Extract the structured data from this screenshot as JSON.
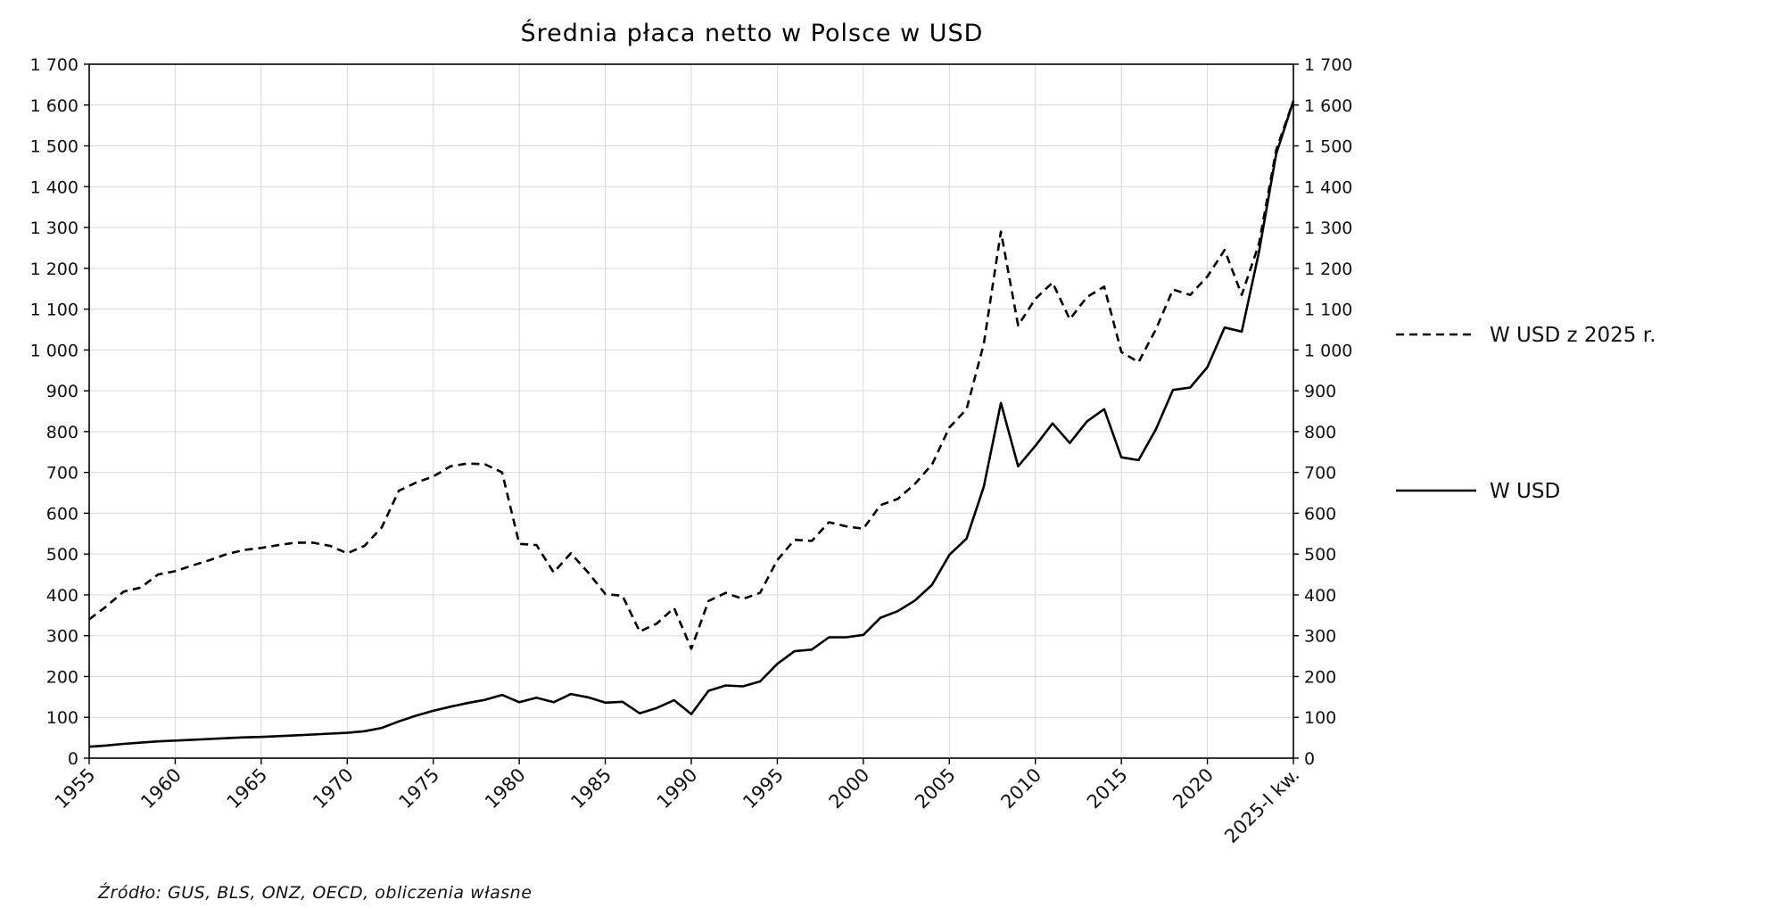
{
  "chart_data": {
    "type": "line",
    "title": "Średnia płaca netto w Polsce w USD",
    "xlabel": "",
    "ylabel": "",
    "x_range": [
      1955,
      2025
    ],
    "ylim": [
      0,
      1700
    ],
    "yticks": [
      0,
      100,
      200,
      300,
      400,
      500,
      600,
      700,
      800,
      900,
      1000,
      1100,
      1200,
      1300,
      1400,
      1500,
      1600,
      1700
    ],
    "ytick_labels": [
      "0",
      "100",
      "200",
      "300",
      "400",
      "500",
      "600",
      "700",
      "800",
      "900",
      "1 000",
      "1 100",
      "1 200",
      "1 300",
      "1 400",
      "1 500",
      "1 600",
      "1 700"
    ],
    "xticks": [
      1955,
      1960,
      1965,
      1970,
      1975,
      1980,
      1985,
      1990,
      1995,
      2000,
      2005,
      2010,
      2015,
      2020,
      2025
    ],
    "xtick_labels": [
      "1955",
      "1960",
      "1965",
      "1970",
      "1975",
      "1980",
      "1985",
      "1990",
      "1995",
      "2000",
      "2005",
      "2010",
      "2015",
      "2020",
      "2025-I kw."
    ],
    "grid": true,
    "legend_position": "right",
    "x": [
      1955,
      1956,
      1957,
      1958,
      1959,
      1960,
      1961,
      1962,
      1963,
      1964,
      1965,
      1966,
      1967,
      1968,
      1969,
      1970,
      1971,
      1972,
      1973,
      1974,
      1975,
      1976,
      1977,
      1978,
      1979,
      1980,
      1981,
      1982,
      1983,
      1984,
      1985,
      1986,
      1987,
      1988,
      1989,
      1990,
      1991,
      1992,
      1993,
      1994,
      1995,
      1996,
      1997,
      1998,
      1999,
      2000,
      2001,
      2002,
      2003,
      2004,
      2005,
      2006,
      2007,
      2008,
      2009,
      2010,
      2011,
      2012,
      2013,
      2014,
      2015,
      2016,
      2017,
      2018,
      2019,
      2020,
      2021,
      2022,
      2023,
      2024,
      2025
    ],
    "series": [
      {
        "name": "W USD z 2025 r.",
        "style": "dashed",
        "color": "#000000",
        "values": [
          340,
          372,
          408,
          418,
          450,
          458,
          472,
          485,
          500,
          510,
          515,
          522,
          528,
          528,
          520,
          502,
          520,
          565,
          655,
          675,
          690,
          715,
          722,
          720,
          700,
          525,
          522,
          455,
          502,
          455,
          402,
          398,
          310,
          330,
          368,
          268,
          385,
          405,
          390,
          405,
          485,
          535,
          532,
          578,
          568,
          562,
          620,
          635,
          672,
          720,
          810,
          855,
          1015,
          1290,
          1060,
          1125,
          1165,
          1075,
          1130,
          1155,
          995,
          970,
          1050,
          1148,
          1135,
          1180,
          1245,
          1135,
          1260,
          1490,
          1610
        ]
      },
      {
        "name": "W USD",
        "style": "solid",
        "color": "#000000",
        "values": [
          28,
          31,
          35,
          38,
          41,
          43,
          45,
          47,
          49,
          51,
          52,
          54,
          56,
          58,
          60,
          62,
          66,
          74,
          90,
          104,
          116,
          126,
          135,
          143,
          155,
          137,
          148,
          137,
          157,
          149,
          136,
          138,
          110,
          123,
          142,
          108,
          165,
          178,
          176,
          188,
          231,
          262,
          266,
          296,
          296,
          302,
          344,
          360,
          386,
          425,
          498,
          538,
          665,
          870,
          715,
          765,
          820,
          772,
          825,
          855,
          737,
          730,
          805,
          902,
          908,
          958,
          1055,
          1045,
          1240,
          1480,
          1610
        ]
      }
    ],
    "source": "Źródło: GUS, BLS, ONZ, OECD, obliczenia własne"
  }
}
